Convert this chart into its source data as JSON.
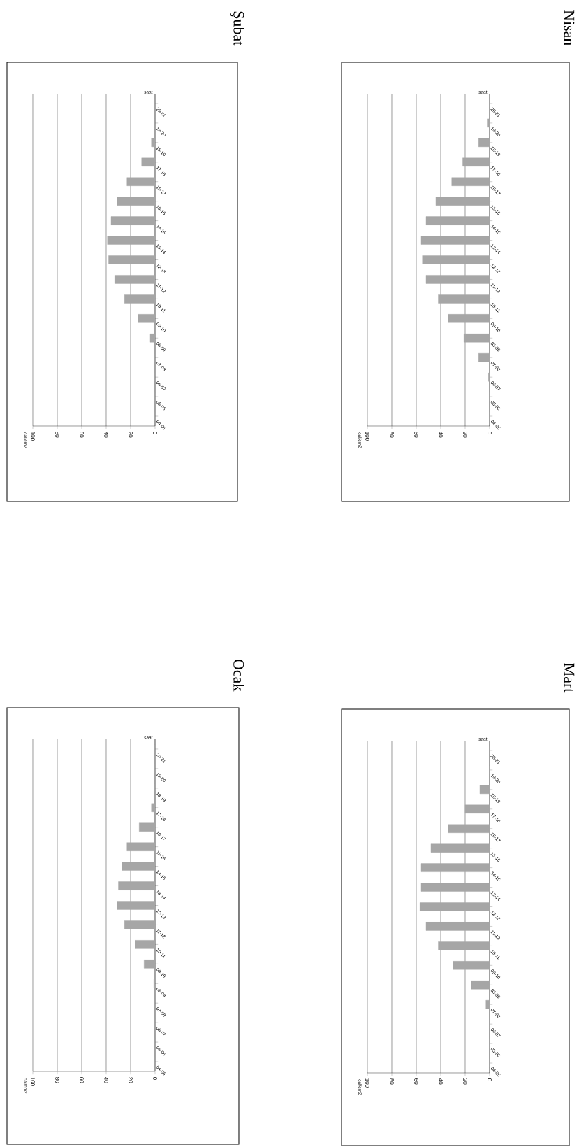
{
  "chart_data": [
    {
      "type": "bar",
      "orientation": "horizontal",
      "annotations": [
        "cal/cm2",
        "Ocak"
      ],
      "ylabel": "saat",
      "categories": [
        "20-21",
        "19-20",
        "18-19",
        "17-18",
        "16-17",
        "15-16",
        "14-15",
        "13-14",
        "12-13",
        "11-12",
        "10-11",
        "09-10",
        "08-09",
        "07-08",
        "06-07",
        "05-06",
        "04-05"
      ],
      "values": [
        0,
        0,
        0,
        3,
        13,
        23,
        27,
        30,
        31,
        25,
        16,
        9,
        1,
        0,
        0,
        0,
        0
      ],
      "color": "#a6a6a6",
      "xlim": [
        100,
        0
      ],
      "xticks": [
        0,
        20,
        40,
        60,
        80,
        100
      ],
      "grid": "x"
    },
    {
      "type": "bar",
      "orientation": "horizontal",
      "annotations": [
        "cal/cm2",
        "Şubat"
      ],
      "ylabel": "saat",
      "categories": [
        "20-21",
        "19-20",
        "18-19",
        "17-18",
        "16-17",
        "15-16",
        "14-15",
        "13-14",
        "12-13",
        "11-12",
        "10-11",
        "09-10",
        "08-09",
        "07-08",
        "06-07",
        "05-06",
        "04-05"
      ],
      "values": [
        0,
        0,
        3,
        11,
        23,
        31,
        36,
        39,
        38,
        33,
        25,
        14,
        4,
        0,
        0,
        0,
        0
      ],
      "color": "#a6a6a6",
      "xlim": [
        100,
        0
      ],
      "xticks": [
        0,
        20,
        40,
        60,
        80,
        100
      ],
      "grid": "x"
    },
    {
      "type": "bar",
      "orientation": "horizontal",
      "annotations": [
        "cal/cm2",
        "Mart"
      ],
      "ylabel": "saat",
      "categories": [
        "20-21",
        "19-20",
        "18-19",
        "17-18",
        "16-17",
        "15-16",
        "14-15",
        "13-14",
        "12-13",
        "11-12",
        "10-11",
        "09-10",
        "08-09",
        "07-08",
        "06-07",
        "05-06",
        "04-05"
      ],
      "values": [
        0,
        0,
        8,
        20,
        34,
        48,
        56,
        56,
        57,
        52,
        42,
        30,
        15,
        3,
        0,
        0,
        0
      ],
      "color": "#a6a6a6",
      "xlim": [
        100,
        0
      ],
      "xticks": [
        0,
        20,
        40,
        60,
        80,
        100
      ],
      "grid": "x"
    },
    {
      "type": "bar",
      "orientation": "horizontal",
      "annotations": [
        "cal/cm2",
        "Nisan"
      ],
      "ylabel": "saat",
      "categories": [
        "20-21",
        "19-20",
        "18-19",
        "17-18",
        "16-17",
        "15-16",
        "14-15",
        "13-14",
        "12-13",
        "11-12",
        "10-11",
        "09-10",
        "08-09",
        "07-08",
        "06-07",
        "05-06",
        "04-05"
      ],
      "values": [
        0,
        2,
        9,
        22,
        31,
        44,
        52,
        56,
        55,
        52,
        42,
        34,
        21,
        9,
        1,
        0,
        0
      ],
      "color": "#a6a6a6",
      "xlim": [
        100,
        0
      ],
      "xticks": [
        0,
        20,
        40,
        60,
        80,
        100
      ],
      "grid": "x"
    }
  ]
}
